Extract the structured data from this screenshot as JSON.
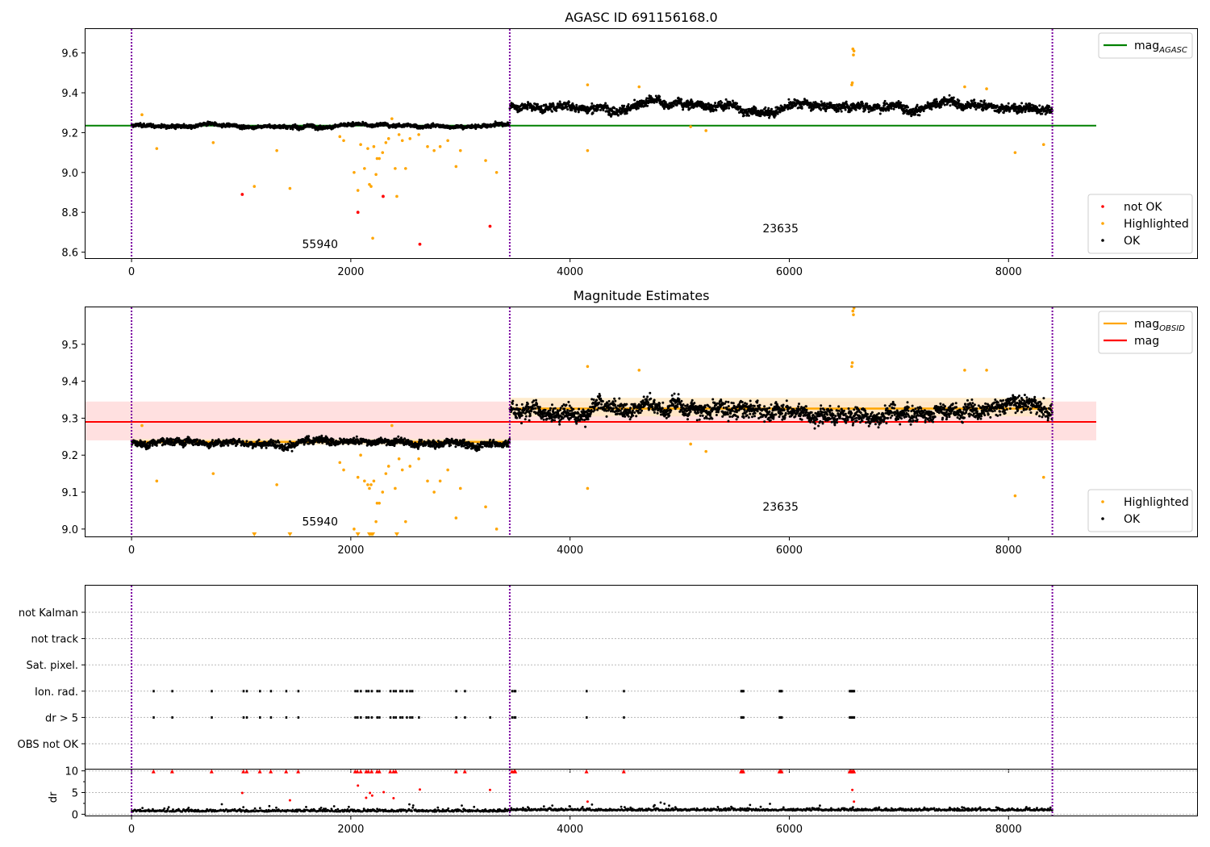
{
  "colors": {
    "ok": "#000000",
    "highlighted": "#ffa500",
    "not_ok": "#ff0000",
    "agasc_line": "#008000",
    "mag_line": "#ff0000",
    "mag_band": "#ffd5d5",
    "obsid_line": "#ffa500",
    "obsid_band": "#ffe7c0",
    "obs_boundary": "#7a00a0",
    "flag_grid": "#b8b8b8"
  },
  "chart_data": [
    {
      "type": "scatter",
      "title": "AGASC ID 691156168.0",
      "xlim": [
        -420,
        9720
      ],
      "ylim": [
        8.57,
        9.72
      ],
      "x_ticks": [
        0,
        2000,
        4000,
        6000,
        8000
      ],
      "y_ticks": [
        8.6,
        8.8,
        9.0,
        9.2,
        9.4,
        9.6
      ],
      "y_tick_labels": [
        "8.6",
        "8.8",
        "9.0",
        "9.2",
        "9.4",
        "9.6"
      ],
      "observation_boundaries": [
        0,
        3450,
        8400
      ],
      "observations": [
        {
          "obsid_label": "55940",
          "x_range": [
            0,
            3450
          ],
          "base_mag": 9.235,
          "scatter": 0.015,
          "label_pos": [
            1720,
            8.62
          ]
        },
        {
          "obsid_label": "23635",
          "x_range": [
            3450,
            8400
          ],
          "base_mag": 9.33,
          "scatter": 0.035,
          "label_pos": [
            5920,
            8.7
          ]
        }
      ],
      "hlines": [
        {
          "name": "mag_AGASC",
          "y": 9.235,
          "x_range": [
            -420,
            8800
          ],
          "color": "#008000"
        }
      ],
      "highlighted_points": [
        [
          95,
          9.29
        ],
        [
          230,
          9.12
        ],
        [
          745,
          9.15
        ],
        [
          1120,
          8.93
        ],
        [
          1325,
          9.11
        ],
        [
          1445,
          8.92
        ],
        [
          1900,
          9.18
        ],
        [
          1935,
          9.16
        ],
        [
          2030,
          9.0
        ],
        [
          2065,
          8.91
        ],
        [
          2090,
          9.14
        ],
        [
          2125,
          9.02
        ],
        [
          2155,
          9.12
        ],
        [
          2170,
          8.94
        ],
        [
          2185,
          8.93
        ],
        [
          2200,
          8.67
        ],
        [
          2210,
          9.13
        ],
        [
          2230,
          8.99
        ],
        [
          2240,
          9.07
        ],
        [
          2260,
          9.07
        ],
        [
          2290,
          9.1
        ],
        [
          2320,
          9.15
        ],
        [
          2345,
          9.17
        ],
        [
          2375,
          9.27
        ],
        [
          2405,
          9.02
        ],
        [
          2420,
          8.88
        ],
        [
          2440,
          9.19
        ],
        [
          2470,
          9.16
        ],
        [
          2500,
          9.02
        ],
        [
          2540,
          9.17
        ],
        [
          2620,
          9.19
        ],
        [
          2700,
          9.13
        ],
        [
          2760,
          9.11
        ],
        [
          2815,
          9.13
        ],
        [
          2885,
          9.16
        ],
        [
          2960,
          9.03
        ],
        [
          3000,
          9.11
        ],
        [
          3230,
          9.06
        ],
        [
          3330,
          9.0
        ],
        [
          4160,
          9.44
        ],
        [
          4160,
          9.11
        ],
        [
          4630,
          9.43
        ],
        [
          5100,
          9.23
        ],
        [
          5240,
          9.21
        ],
        [
          6570,
          9.44
        ],
        [
          6575,
          9.45
        ],
        [
          6580,
          9.62
        ],
        [
          6590,
          9.61
        ],
        [
          6585,
          9.59
        ],
        [
          7600,
          9.43
        ],
        [
          7800,
          9.42
        ],
        [
          8060,
          9.1
        ],
        [
          8320,
          9.14
        ]
      ],
      "not_ok_points": [
        [
          1010,
          8.89
        ],
        [
          2065,
          8.8
        ],
        [
          2295,
          8.88
        ],
        [
          2630,
          8.64
        ],
        [
          3270,
          8.73
        ]
      ],
      "legends": [
        {
          "position": "top-right",
          "entries": [
            {
              "label": "mag",
              "subscript": "AGASC",
              "marker": "line",
              "color": "#008000"
            }
          ]
        },
        {
          "position": "lower-right",
          "entries": [
            {
              "label": "not OK",
              "marker": "dot",
              "color": "#ff0000"
            },
            {
              "label": "Highlighted",
              "marker": "dot",
              "color": "#ffa500"
            },
            {
              "label": "OK",
              "marker": "dot",
              "color": "#000000"
            }
          ]
        }
      ]
    },
    {
      "type": "scatter",
      "title": "Magnitude Estimates",
      "xlim": [
        -420,
        9720
      ],
      "ylim": [
        8.98,
        9.6
      ],
      "x_ticks": [
        0,
        2000,
        4000,
        6000,
        8000
      ],
      "y_ticks": [
        9.0,
        9.1,
        9.2,
        9.3,
        9.4,
        9.5
      ],
      "y_tick_labels": [
        "9.0",
        "9.1",
        "9.2",
        "9.3",
        "9.4",
        "9.5"
      ],
      "observation_boundaries": [
        0,
        3450,
        8400
      ],
      "observations": [
        {
          "obsid_label": "55940",
          "x_range": [
            0,
            3450
          ],
          "base_mag": 9.235,
          "scatter": 0.015,
          "label_pos": [
            1720,
            9.01
          ]
        },
        {
          "obsid_label": "23635",
          "x_range": [
            3450,
            8400
          ],
          "base_mag": 9.33,
          "scatter": 0.035,
          "label_pos": [
            5920,
            9.05
          ]
        }
      ],
      "mag": {
        "y": 9.29,
        "band": [
          9.24,
          9.345
        ],
        "x_range": [
          -420,
          8800
        ]
      },
      "mag_obsid": [
        {
          "x_range": [
            0,
            3450
          ],
          "y": 9.236,
          "band": [
            9.228,
            9.244
          ]
        },
        {
          "x_range": [
            3450,
            8400
          ],
          "y": 9.326,
          "band": [
            9.305,
            9.355
          ]
        }
      ],
      "highlighted_points": [
        [
          95,
          9.28
        ],
        [
          230,
          9.13
        ],
        [
          745,
          9.15
        ],
        [
          1325,
          9.12
        ],
        [
          1900,
          9.18
        ],
        [
          1935,
          9.16
        ],
        [
          2030,
          9.0
        ],
        [
          2065,
          9.14
        ],
        [
          2090,
          9.2
        ],
        [
          2125,
          9.13
        ],
        [
          2155,
          9.12
        ],
        [
          2170,
          9.11
        ],
        [
          2185,
          9.12
        ],
        [
          2210,
          9.13
        ],
        [
          2230,
          9.02
        ],
        [
          2240,
          9.07
        ],
        [
          2260,
          9.07
        ],
        [
          2290,
          9.1
        ],
        [
          2320,
          9.15
        ],
        [
          2345,
          9.17
        ],
        [
          2375,
          9.28
        ],
        [
          2405,
          9.11
        ],
        [
          2440,
          9.19
        ],
        [
          2470,
          9.16
        ],
        [
          2500,
          9.02
        ],
        [
          2540,
          9.17
        ],
        [
          2620,
          9.19
        ],
        [
          2700,
          9.13
        ],
        [
          2760,
          9.1
        ],
        [
          2815,
          9.13
        ],
        [
          2885,
          9.16
        ],
        [
          2960,
          9.03
        ],
        [
          3000,
          9.11
        ],
        [
          3230,
          9.06
        ],
        [
          3330,
          9.0
        ],
        [
          4160,
          9.44
        ],
        [
          4160,
          9.11
        ],
        [
          4630,
          9.43
        ],
        [
          5100,
          9.23
        ],
        [
          5240,
          9.21
        ],
        [
          6570,
          9.44
        ],
        [
          6575,
          9.45
        ],
        [
          6580,
          9.59
        ],
        [
          6590,
          9.6
        ],
        [
          6585,
          9.58
        ],
        [
          7600,
          9.43
        ],
        [
          7800,
          9.43
        ],
        [
          8060,
          9.09
        ],
        [
          8320,
          9.14
        ]
      ],
      "clipped_low_points_x": [
        1120,
        1445,
        2065,
        2170,
        2185,
        2200,
        2420
      ],
      "legends": [
        {
          "position": "top-right",
          "entries": [
            {
              "label": "mag",
              "subscript": "OBSID",
              "marker": "line",
              "color": "#ffa500"
            },
            {
              "label": "mag",
              "marker": "line",
              "color": "#ff0000"
            }
          ]
        },
        {
          "position": "lower-right",
          "entries": [
            {
              "label": "Highlighted",
              "marker": "dot",
              "color": "#ffa500"
            },
            {
              "label": "OK",
              "marker": "dot",
              "color": "#000000"
            }
          ]
        }
      ]
    },
    {
      "type": "scatter",
      "title": "",
      "xlim": [
        -420,
        9720
      ],
      "x_ticks": [
        0,
        2000,
        4000,
        6000,
        8000
      ],
      "observation_boundaries": [
        0,
        3450,
        8400
      ],
      "flag_rows": [
        "not Kalman",
        "not track",
        "Sat. pixel.",
        "Ion. rad.",
        "dr > 5",
        "OBS not OK"
      ],
      "ion_rad_x": [
        200,
        370,
        730,
        1020,
        1050,
        1170,
        1270,
        1410,
        1520,
        2040,
        2060,
        2090,
        2140,
        2160,
        2190,
        2240,
        2260,
        2360,
        2390,
        2410,
        2450,
        2470,
        2510,
        2540,
        2560,
        2960,
        3040,
        3470,
        3490,
        3500,
        4150,
        4490,
        5560,
        5570,
        5580,
        5910,
        5920,
        5930,
        6550,
        6560,
        6570,
        6580,
        6590
      ],
      "dr_gt5_x": [
        200,
        370,
        730,
        1020,
        1050,
        1170,
        1270,
        1410,
        1520,
        2040,
        2060,
        2090,
        2140,
        2160,
        2190,
        2240,
        2260,
        2360,
        2390,
        2410,
        2450,
        2470,
        2510,
        2540,
        2560,
        2620,
        2960,
        3040,
        3270,
        3470,
        3490,
        3500,
        4150,
        4490,
        5560,
        5570,
        5580,
        5910,
        5920,
        5930,
        6550,
        6560,
        6570,
        6580,
        6590
      ]
    },
    {
      "type": "scatter",
      "title": "",
      "ylabel": "dr",
      "xlim": [
        -420,
        9720
      ],
      "ylim": [
        -0.3,
        10.3
      ],
      "x_ticks": [
        0,
        2000,
        4000,
        6000,
        8000
      ],
      "x_tick_labels": [
        "0",
        "2000",
        "4000",
        "6000",
        "8000"
      ],
      "y_ticks": [
        0,
        5,
        10
      ],
      "y_tick_labels": [
        "0",
        "5",
        "10"
      ],
      "observation_boundaries": [
        0,
        3450,
        8400
      ],
      "red_clipped_x": [
        200,
        370,
        730,
        1020,
        1050,
        1170,
        1270,
        1410,
        1520,
        2040,
        2060,
        2090,
        2140,
        2160,
        2190,
        2240,
        2260,
        2360,
        2390,
        2410,
        2960,
        3040,
        3470,
        3490,
        3500,
        4150,
        4490,
        5560,
        5570,
        5580,
        5910,
        5920,
        5930,
        6550,
        6560,
        6570,
        6580,
        6590
      ],
      "red_points": [
        [
          1010,
          4.9
        ],
        [
          2065,
          6.6
        ],
        [
          2140,
          3.8
        ],
        [
          2175,
          4.9
        ],
        [
          2195,
          4.3
        ],
        [
          2300,
          5.1
        ],
        [
          2390,
          3.7
        ],
        [
          2630,
          5.7
        ],
        [
          3270,
          5.6
        ],
        [
          1445,
          3.2
        ],
        [
          4160,
          2.9
        ],
        [
          6575,
          5.6
        ],
        [
          6590,
          2.9
        ]
      ],
      "dr_base": 0.6,
      "dr_scatter": 0.5
    }
  ]
}
